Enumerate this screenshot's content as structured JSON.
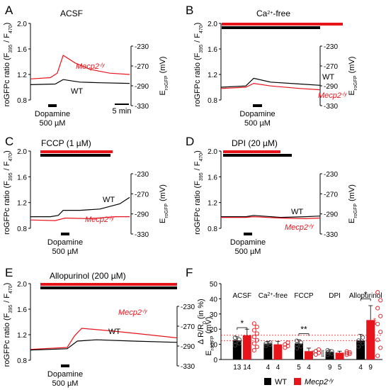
{
  "colors": {
    "wt": "#000000",
    "mecp2": "#e8141b",
    "axis": "#000000",
    "ref_line": "#e8141b"
  },
  "traces_common": {
    "ylabel_left": "roGFPc ratio (F395 / F470)",
    "ylabel_left_parts": [
      "roGFPc ratio (F",
      "395",
      " / F",
      "470",
      ")"
    ],
    "ylabel_right_parts": [
      "E",
      "roGFP",
      " (mV)"
    ],
    "left_ticks": [
      "2.0",
      "1.6",
      "1.2",
      "0.8"
    ],
    "right_ticks": [
      "-230",
      "-270",
      "-290",
      "-330"
    ],
    "dopamine_label": "Dopamine",
    "dopamine_conc": "500 µM",
    "scalebar_label": "5 min",
    "wt_label": "WT",
    "mecp2_label": "Mecp2",
    "mecp2_sup": "-/y"
  },
  "panels": [
    {
      "letter": "A",
      "title": "ACSF"
    },
    {
      "letter": "B",
      "title_parts": [
        "Ca",
        "2+",
        "-free"
      ]
    },
    {
      "letter": "C",
      "title": "FCCP (1 µM)"
    },
    {
      "letter": "D",
      "title": "DPI (20 µM)"
    },
    {
      "letter": "E",
      "title": "Allopurinol (200 µM)"
    },
    {
      "letter": "F"
    }
  ],
  "chart_data": [
    {
      "type": "line",
      "panel": "A",
      "title": "ACSF",
      "ylim": [
        0.8,
        2.0
      ],
      "series": [
        {
          "name": "Mecp2-/y",
          "points": [
            [
              0,
              1.13
            ],
            [
              0.2,
              1.15
            ],
            [
              0.27,
              1.22
            ],
            [
              0.33,
              1.5
            ],
            [
              0.45,
              1.38
            ],
            [
              0.6,
              1.28
            ],
            [
              0.8,
              1.22
            ],
            [
              1.0,
              1.2
            ]
          ]
        },
        {
          "name": "WT",
          "points": [
            [
              0,
              1.04
            ],
            [
              0.25,
              1.05
            ],
            [
              0.33,
              1.12
            ],
            [
              0.5,
              1.08
            ],
            [
              0.7,
              1.07
            ],
            [
              1.0,
              1.06
            ]
          ]
        }
      ],
      "labels": [
        "Mecp2-/y",
        "WT"
      ]
    },
    {
      "type": "line",
      "panel": "B",
      "title": "Ca2+-free",
      "ylim": [
        0.8,
        2.0
      ],
      "series": [
        {
          "name": "WT",
          "points": [
            [
              0,
              1.0
            ],
            [
              0.25,
              1.02
            ],
            [
              0.33,
              1.14
            ],
            [
              0.5,
              1.08
            ],
            [
              0.8,
              1.05
            ],
            [
              1.0,
              1.03
            ]
          ]
        },
        {
          "name": "Mecp2-/y",
          "points": [
            [
              0,
              0.98
            ],
            [
              0.25,
              1.0
            ],
            [
              0.33,
              1.06
            ],
            [
              0.5,
              1.02
            ],
            [
              0.8,
              0.98
            ],
            [
              1.0,
              0.96
            ]
          ]
        }
      ],
      "labels": [
        "WT",
        "Mecp2-/y"
      ]
    },
    {
      "type": "line",
      "panel": "C",
      "title": "FCCP (1 µM)",
      "ylim": [
        0.8,
        2.0
      ],
      "series": [
        {
          "name": "WT",
          "points": [
            [
              0,
              0.98
            ],
            [
              0.2,
              0.98
            ],
            [
              0.28,
              1.0
            ],
            [
              0.33,
              1.08
            ],
            [
              0.5,
              1.08
            ],
            [
              0.7,
              1.1
            ],
            [
              0.9,
              1.18
            ],
            [
              1.0,
              1.28
            ]
          ]
        },
        {
          "name": "Mecp2-/y",
          "points": [
            [
              0,
              0.93
            ],
            [
              0.25,
              0.92
            ],
            [
              0.35,
              0.96
            ],
            [
              0.6,
              0.95
            ],
            [
              0.85,
              0.98
            ],
            [
              1.0,
              0.98
            ]
          ]
        }
      ],
      "labels": [
        "WT",
        "Mecp2-/y"
      ]
    },
    {
      "type": "line",
      "panel": "D",
      "title": "DPI (20 µM)",
      "ylim": [
        0.8,
        2.0
      ],
      "series": [
        {
          "name": "WT",
          "points": [
            [
              0,
              0.98
            ],
            [
              0.25,
              0.98
            ],
            [
              0.33,
              1.0
            ],
            [
              0.6,
              0.97
            ],
            [
              0.85,
              0.98
            ],
            [
              1.0,
              0.99
            ]
          ]
        },
        {
          "name": "Mecp2-/y",
          "points": [
            [
              0,
              0.97
            ],
            [
              0.25,
              0.97
            ],
            [
              0.33,
              0.98
            ],
            [
              0.6,
              0.96
            ],
            [
              0.85,
              0.95
            ],
            [
              1.0,
              0.96
            ]
          ]
        }
      ],
      "labels": [
        "WT",
        "Mecp2-/y"
      ]
    },
    {
      "type": "line",
      "panel": "E",
      "title": "Allopurinol (200 µM)",
      "ylim": [
        0.8,
        2.0
      ],
      "series": [
        {
          "name": "Mecp2-/y",
          "points": [
            [
              0,
              0.97
            ],
            [
              0.25,
              1.0
            ],
            [
              0.3,
              1.18
            ],
            [
              0.35,
              1.3
            ],
            [
              0.55,
              1.26
            ],
            [
              0.8,
              1.2
            ],
            [
              1.0,
              1.15
            ]
          ]
        },
        {
          "name": "WT",
          "points": [
            [
              0,
              0.96
            ],
            [
              0.25,
              0.98
            ],
            [
              0.32,
              1.1
            ],
            [
              0.45,
              1.12
            ],
            [
              0.7,
              1.1
            ],
            [
              1.0,
              1.08
            ]
          ]
        }
      ],
      "labels": [
        "Mecp2-/y",
        "WT"
      ]
    },
    {
      "type": "bar",
      "panel": "F",
      "ylabel_parts": [
        "Δ R/R",
        "0",
        " (in %)"
      ],
      "ylim": [
        0,
        50
      ],
      "yticks": [
        "0",
        "10",
        "20",
        "30",
        "40",
        "50"
      ],
      "categories": [
        "ACSF",
        "Ca2+-free",
        "FCCP",
        "DPI",
        "Allopurinol"
      ],
      "category_labels": [
        {
          "parts": [
            "ACSF"
          ]
        },
        {
          "parts": [
            "Ca",
            "2+",
            "-free"
          ]
        },
        {
          "parts": [
            "FCCP"
          ]
        },
        {
          "parts": [
            "DPI"
          ]
        },
        {
          "parts": [
            "Allopurinol"
          ]
        }
      ],
      "series": [
        {
          "name": "WT",
          "values": [
            12.5,
            10.5,
            10.5,
            5.0,
            12.5
          ],
          "err": [
            2.5,
            1.5,
            2.5,
            1.5,
            4.0
          ],
          "n": [
            "13",
            "4",
            "5",
            "9",
            "4"
          ]
        },
        {
          "name": "Mecp2-/y",
          "values": [
            16.0,
            10.0,
            5.5,
            4.5,
            26.0
          ],
          "err": [
            4.0,
            2.0,
            2.0,
            1.0,
            9.5
          ],
          "n": [
            "14",
            "4",
            "4",
            "5",
            "9"
          ]
        }
      ],
      "ref_lines": [
        16,
        12.5
      ],
      "significance": [
        {
          "category": 0,
          "label": "*",
          "y": 21
        },
        {
          "category": 2,
          "label": "**",
          "y": 17
        },
        {
          "category": 4,
          "label": "*",
          "y": 40
        }
      ],
      "marks": [
        {
          "category": 2,
          "series": 1,
          "label": "##"
        },
        {
          "category": 3,
          "series": 0,
          "label": "###"
        },
        {
          "category": 4,
          "series": 1,
          "label": "###"
        }
      ],
      "legend": [
        "WT",
        "Mecp2-/y"
      ],
      "legend_position": "bottom"
    }
  ]
}
